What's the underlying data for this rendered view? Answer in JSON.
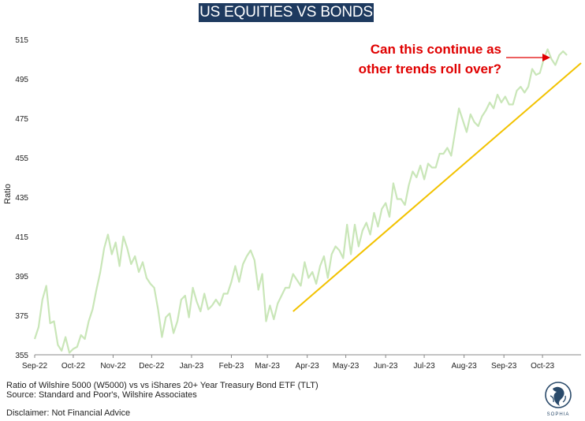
{
  "chart_data": {
    "type": "line",
    "title": "US EQUITIES VS BONDS",
    "ylabel": "Ratio",
    "xlabel": "",
    "ylim": [
      355,
      515
    ],
    "yticks": [
      355,
      375,
      395,
      415,
      435,
      455,
      475,
      495,
      515
    ],
    "xlim": [
      "2022-09-01",
      "2023-10-31"
    ],
    "xticks": [
      {
        "label": "Sep-22",
        "date": "2022-09-01"
      },
      {
        "label": "Oct-22",
        "date": "2022-10-01"
      },
      {
        "label": "Nov-22",
        "date": "2022-11-01"
      },
      {
        "label": "Dec-22",
        "date": "2022-12-01"
      },
      {
        "label": "Jan-23",
        "date": "2023-01-01"
      },
      {
        "label": "Feb-23",
        "date": "2023-02-01"
      },
      {
        "label": "Mar-23",
        "date": "2023-03-01"
      },
      {
        "label": "Apr-23",
        "date": "2023-04-01"
      },
      {
        "label": "May-23",
        "date": "2023-05-01"
      },
      {
        "label": "Jun-23",
        "date": "2023-06-01"
      },
      {
        "label": "Jul-23",
        "date": "2023-07-01"
      },
      {
        "label": "Aug-23",
        "date": "2023-08-01"
      },
      {
        "label": "Sep-23",
        "date": "2023-09-01"
      },
      {
        "label": "Oct-23",
        "date": "2023-10-01"
      }
    ],
    "grid": false,
    "series": [
      {
        "color": "#c9e6b8",
        "x": [
          "2022-09-01",
          "2022-09-04",
          "2022-09-07",
          "2022-09-10",
          "2022-09-13",
          "2022-09-16",
          "2022-09-19",
          "2022-09-22",
          "2022-09-25",
          "2022-09-28",
          "2022-10-01",
          "2022-10-04",
          "2022-10-07",
          "2022-10-10",
          "2022-10-13",
          "2022-10-16",
          "2022-10-19",
          "2022-10-22",
          "2022-10-25",
          "2022-10-28",
          "2022-10-31",
          "2022-11-03",
          "2022-11-06",
          "2022-11-09",
          "2022-11-12",
          "2022-11-15",
          "2022-11-18",
          "2022-11-21",
          "2022-11-24",
          "2022-11-27",
          "2022-11-30",
          "2022-12-03",
          "2022-12-06",
          "2022-12-09",
          "2022-12-12",
          "2022-12-15",
          "2022-12-18",
          "2022-12-21",
          "2022-12-24",
          "2022-12-27",
          "2022-12-30",
          "2023-01-02",
          "2023-01-05",
          "2023-01-08",
          "2023-01-11",
          "2023-01-14",
          "2023-01-17",
          "2023-01-20",
          "2023-01-23",
          "2023-01-26",
          "2023-01-29",
          "2023-02-01",
          "2023-02-04",
          "2023-02-07",
          "2023-02-10",
          "2023-02-13",
          "2023-02-16",
          "2023-02-19",
          "2023-02-22",
          "2023-02-25",
          "2023-02-28",
          "2023-03-03",
          "2023-03-06",
          "2023-03-09",
          "2023-03-12",
          "2023-03-15",
          "2023-03-18",
          "2023-03-21",
          "2023-03-24",
          "2023-03-27",
          "2023-03-30",
          "2023-04-02",
          "2023-04-05",
          "2023-04-08",
          "2023-04-11",
          "2023-04-14",
          "2023-04-17",
          "2023-04-20",
          "2023-04-23",
          "2023-04-26",
          "2023-04-29",
          "2023-05-02",
          "2023-05-05",
          "2023-05-08",
          "2023-05-11",
          "2023-05-14",
          "2023-05-17",
          "2023-05-20",
          "2023-05-23",
          "2023-05-26",
          "2023-05-29",
          "2023-06-01",
          "2023-06-04",
          "2023-06-07",
          "2023-06-10",
          "2023-06-13",
          "2023-06-16",
          "2023-06-19",
          "2023-06-22",
          "2023-06-25",
          "2023-06-28",
          "2023-07-01",
          "2023-07-04",
          "2023-07-07",
          "2023-07-10",
          "2023-07-13",
          "2023-07-16",
          "2023-07-19",
          "2023-07-22",
          "2023-07-25",
          "2023-07-28",
          "2023-07-31",
          "2023-08-03",
          "2023-08-06",
          "2023-08-09",
          "2023-08-12",
          "2023-08-15",
          "2023-08-18",
          "2023-08-21",
          "2023-08-24",
          "2023-08-27",
          "2023-08-30",
          "2023-09-02",
          "2023-09-05",
          "2023-09-08",
          "2023-09-11",
          "2023-09-14",
          "2023-09-17",
          "2023-09-20",
          "2023-09-23",
          "2023-09-26",
          "2023-09-29",
          "2023-10-02",
          "2023-10-05",
          "2023-10-08",
          "2023-10-11",
          "2023-10-14",
          "2023-10-17",
          "2023-10-20"
        ],
        "values": [
          363,
          369,
          383,
          390,
          371,
          372,
          360,
          357,
          364,
          356,
          358,
          359,
          365,
          363,
          372,
          378,
          388,
          397,
          409,
          416,
          406,
          412,
          400,
          415,
          409,
          401,
          405,
          397,
          402,
          394,
          391,
          389,
          378,
          364,
          374,
          376,
          366,
          372,
          383,
          385,
          374,
          389,
          382,
          377,
          386,
          378,
          380,
          383,
          380,
          386,
          386,
          392,
          400,
          392,
          401,
          405,
          408,
          403,
          388,
          396,
          372,
          380,
          373,
          381,
          385,
          389,
          389,
          396,
          393,
          390,
          402,
          394,
          397,
          391,
          400,
          405,
          394,
          406,
          410,
          408,
          404,
          421,
          406,
          421,
          410,
          418,
          422,
          416,
          427,
          420,
          429,
          432,
          425,
          442,
          434,
          434,
          431,
          441,
          448,
          445,
          451,
          444,
          452,
          450,
          450,
          457,
          457,
          460,
          456,
          468,
          480,
          474,
          468,
          477,
          473,
          471,
          476,
          479,
          483,
          480,
          487,
          483,
          486,
          482,
          482,
          489,
          491,
          488,
          491,
          500,
          497,
          498,
          505,
          510,
          505,
          502,
          507,
          509,
          507
        ]
      }
    ],
    "trendline": {
      "color": "#f2c200",
      "start": {
        "x": "2023-03-21",
        "y": 377
      },
      "end": {
        "x": "2023-10-31",
        "y": 503
      }
    },
    "annotation": {
      "lines": [
        "Can this continue as",
        "other trends roll over?"
      ],
      "color": "#e00000"
    }
  },
  "footer": {
    "line1": "Ratio of Wilshire 5000 (W5000) vs vs iShares 20+ Year Treasury Bond ETF (TLT)",
    "line2": "Source: Standard and Poor's, Wilshire Associates",
    "disclaimer": "Disclaimer: Not Financial Advice"
  },
  "logo": {
    "text": "SOPHIA",
    "color": "#2a4a6a"
  }
}
